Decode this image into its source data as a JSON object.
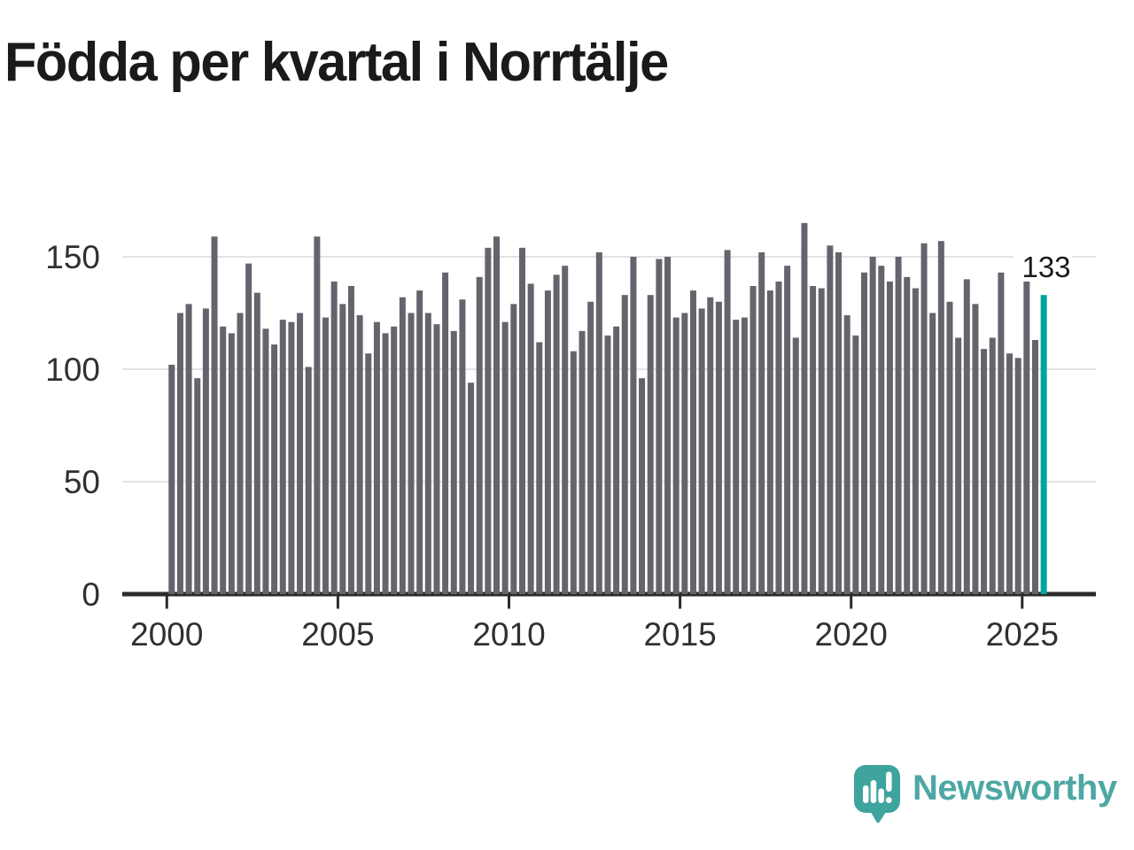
{
  "title": "Födda per kvartal i Norrtälje",
  "colors": {
    "background": "#ffffff",
    "title_text": "#1a1a1a",
    "bar": "#64646c",
    "highlight": "#00a49b",
    "gridline": "#e3e3e3",
    "axis": "#2b2b2b",
    "axis_label_text": "#303030",
    "annotation_text": "#1a1a1a",
    "logo_bubble": "#3ea49d",
    "logo_marks": "#ffffff",
    "wordmark": "#4ea7a3"
  },
  "branding": {
    "name": "Newsworthy",
    "icon": "speech-bubble-bar-chart-icon"
  },
  "chart_data": {
    "type": "bar",
    "title": "Födda per kvartal i Norrtälje",
    "x_unit": "quarter",
    "start_year": 2000,
    "start_quarter": 1,
    "end_period": "2025-Q3",
    "values": [
      102,
      125,
      129,
      96,
      127,
      159,
      119,
      116,
      125,
      147,
      134,
      118,
      111,
      122,
      121,
      125,
      101,
      159,
      123,
      139,
      129,
      137,
      124,
      107,
      121,
      116,
      119,
      132,
      125,
      135,
      125,
      120,
      143,
      117,
      131,
      94,
      141,
      154,
      159,
      121,
      129,
      154,
      138,
      112,
      135,
      142,
      146,
      108,
      117,
      130,
      152,
      115,
      119,
      133,
      150,
      96,
      133,
      149,
      150,
      123,
      125,
      135,
      127,
      132,
      130,
      153,
      122,
      123,
      137,
      152,
      135,
      139,
      146,
      114,
      165,
      137,
      136,
      155,
      152,
      124,
      115,
      143,
      150,
      146,
      139,
      150,
      141,
      136,
      156,
      125,
      157,
      130,
      114,
      140,
      129,
      109,
      114,
      143,
      107,
      105,
      139,
      113,
      133
    ],
    "highlight": {
      "label": "133",
      "value": 133
    },
    "xticks": [
      "2000",
      "2005",
      "2010",
      "2015",
      "2020",
      "2025"
    ],
    "yticks": [
      0,
      50,
      100,
      150
    ],
    "ylim": [
      0,
      168
    ],
    "xlabel": "",
    "ylabel": "",
    "grid": "horizontal",
    "legend": "none"
  }
}
